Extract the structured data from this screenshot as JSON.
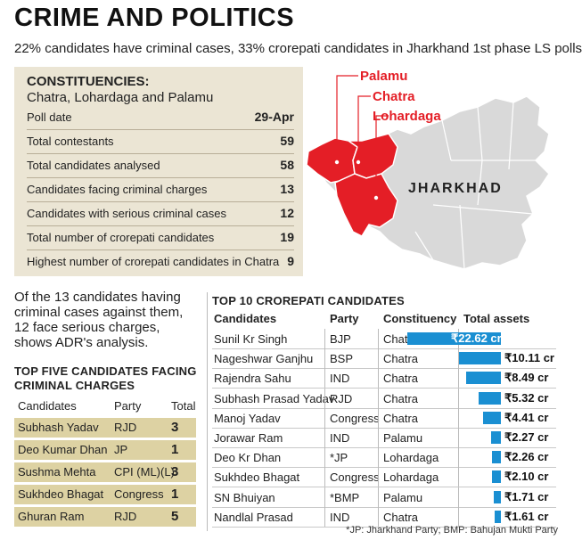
{
  "title": "CRIME AND POLITICS",
  "subtitle": "22% candidates have criminal cases, 33% crorepati candidates in Jharkhand 1st phase LS polls",
  "constituencies": {
    "heading": "CONSTITUENCIES:",
    "names": "Chatra, Lohardaga and Palamu",
    "rows": [
      {
        "label": "Poll date",
        "value": "29-Apr"
      },
      {
        "label": "Total contestants",
        "value": "59"
      },
      {
        "label": "Total candidates analysed",
        "value": "58"
      },
      {
        "label": "Candidates facing criminal charges",
        "value": "13"
      },
      {
        "label": "Candidates with serious criminal cases",
        "value": "12"
      },
      {
        "label": "Total number of crorepati candidates",
        "value": "19"
      },
      {
        "label": "Highest number of crorepati candidates in Chatra",
        "value": "9"
      }
    ]
  },
  "map": {
    "state_label": "JHARKHAD",
    "labels": [
      "Palamu",
      "Chatra",
      "Lohardaga"
    ],
    "highlight_color": "#e41e26",
    "base_color": "#d9d9d9"
  },
  "note": "Of the 13 candidates having criminal cases against them, 12 face serious charges, shows ADR's analysis.",
  "top5": {
    "title_line1": "TOP FIVE CANDIDATES FACING",
    "title_line2": "CRIMINAL CHARGES",
    "headers": [
      "Candidates",
      "Party",
      "Total"
    ],
    "rows": [
      {
        "name": "Subhash Yadav",
        "party": "RJD",
        "total": "3"
      },
      {
        "name": "Deo Kumar Dhan",
        "party": "JP",
        "total": "1"
      },
      {
        "name": "Sushma Mehta",
        "party": "CPI (ML)(L)",
        "total": "3"
      },
      {
        "name": "Sukhdeo Bhagat",
        "party": "Congress",
        "total": "1"
      },
      {
        "name": "Ghuran Ram",
        "party": "RJD",
        "total": "5"
      }
    ]
  },
  "top10": {
    "title": "TOP 10 CROREPATI CANDIDATES",
    "headers": [
      "Candidates",
      "Party",
      "Constituency",
      "Total assets"
    ],
    "bar_color": "#1a8fd2",
    "rows": [
      {
        "name": "Sunil Kr Singh",
        "party": "BJP",
        "constituency": "Chatra",
        "assets": "₹22.62 cr",
        "value": 22.62
      },
      {
        "name": "Nageshwar Ganjhu",
        "party": "BSP",
        "constituency": "Chatra",
        "assets": "₹10.11 cr",
        "value": 10.11
      },
      {
        "name": "Rajendra Sahu",
        "party": "IND",
        "constituency": "Chatra",
        "assets": "₹8.49 cr",
        "value": 8.49
      },
      {
        "name": "Subhash Prasad Yadav",
        "party": "RJD",
        "constituency": "Chatra",
        "assets": "₹5.32 cr",
        "value": 5.32
      },
      {
        "name": "Manoj Yadav",
        "party": "Congress",
        "constituency": "Chatra",
        "assets": "₹4.41 cr",
        "value": 4.41
      },
      {
        "name": "Jorawar Ram",
        "party": "IND",
        "constituency": "Palamu",
        "assets": "₹2.27 cr",
        "value": 2.27
      },
      {
        "name": "Deo Kr Dhan",
        "party": "*JP",
        "constituency": "Lohardaga",
        "assets": "₹2.26 cr",
        "value": 2.26
      },
      {
        "name": "Sukhdeo Bhagat",
        "party": "Congress",
        "constituency": "Lohardaga",
        "assets": "₹2.10 cr",
        "value": 2.1
      },
      {
        "name": "SN Bhuiyan",
        "party": "*BMP",
        "constituency": "Palamu",
        "assets": "₹1.71 cr",
        "value": 1.71
      },
      {
        "name": "Nandlal Prasad",
        "party": "IND",
        "constituency": "Chatra",
        "assets": "₹1.61 cr",
        "value": 1.61
      }
    ],
    "footnote": "*JP: Jharkhand Party; BMP: Bahujan Mukti Party"
  }
}
